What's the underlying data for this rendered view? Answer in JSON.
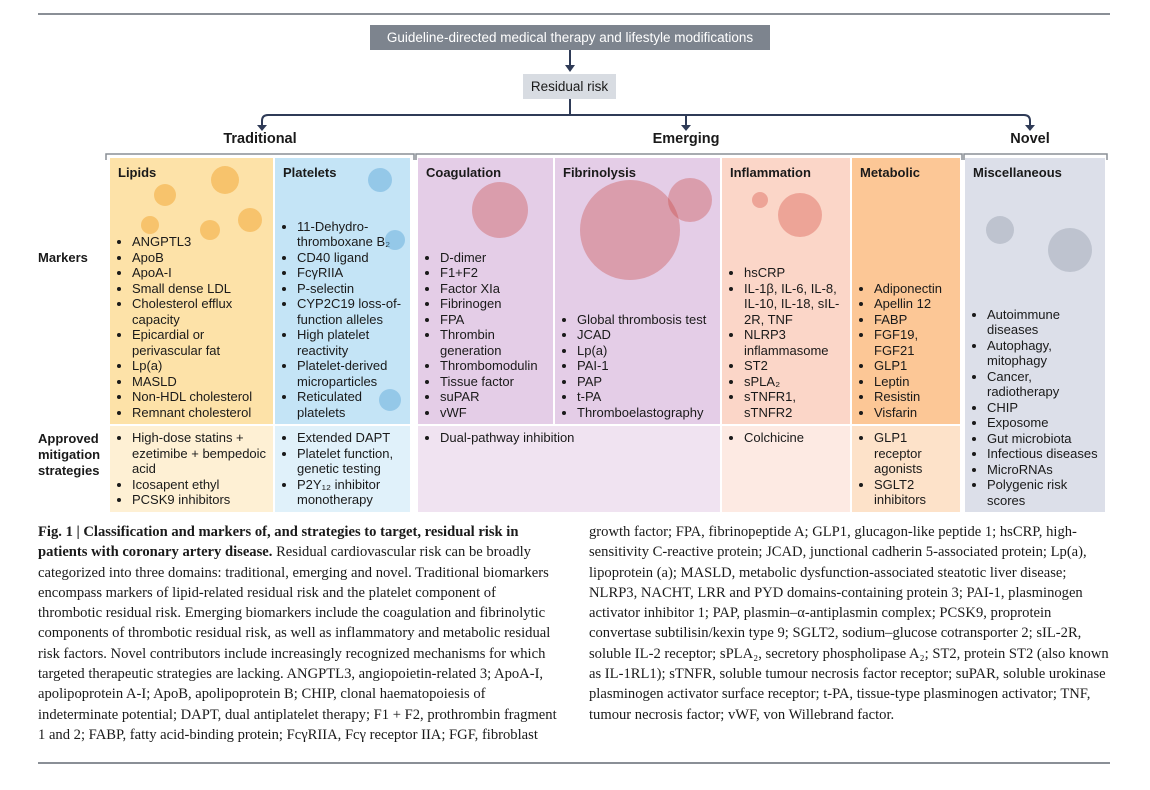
{
  "top_box": "Guideline-directed medical therapy and lifestyle modifications",
  "residual_box": "Residual risk",
  "groups": [
    "Traditional",
    "Emerging",
    "Novel"
  ],
  "markers_row": {
    "label": "Markers",
    "columns": [
      {
        "title": "Lipids",
        "items": [
          "ANGPTL3",
          "ApoB",
          "ApoA-I",
          "Small dense LDL",
          "Cholesterol efflux capacity",
          "Epicardial or perivascular fat",
          "Lp(a)",
          "MASLD",
          "Non-HDL cholesterol",
          "Remnant cholesterol"
        ]
      },
      {
        "title": "Platelets",
        "items": [
          "11-Dehydro-thromboxane B₂",
          "CD40 ligand",
          "FcγRIIA",
          "P-selectin",
          "CYP2C19 loss-of-function alleles",
          "High platelet reactivity",
          "Platelet-derived microparticles",
          "Reticulated platelets"
        ]
      },
      {
        "title": "Coagulation",
        "items": [
          "D-dimer",
          "F1+F2",
          "Factor XIa",
          "Fibrinogen",
          "FPA",
          "Thrombin generation",
          "Thrombomodulin",
          "Tissue factor",
          "suPAR",
          "vWF"
        ]
      },
      {
        "title": "Fibrinolysis",
        "items": [
          "Global thrombosis test",
          "JCAD",
          "Lp(a)",
          "PAI-1",
          "PAP",
          "t-PA",
          "Thromboelastography"
        ]
      },
      {
        "title": "Inflammation",
        "items": [
          "hsCRP",
          "IL-1β, IL-6, IL-8, IL-10, IL-18, sIL-2R, TNF",
          "NLRP3 inflammasome",
          "ST2",
          "sPLA₂",
          "sTNFR1, sTNFR2"
        ]
      },
      {
        "title": "Metabolic",
        "items": [
          "Adiponectin",
          "Apellin 12",
          "FABP",
          "FGF19, FGF21",
          "GLP1",
          "Leptin",
          "Resistin",
          "Visfarin"
        ]
      },
      {
        "title": "Miscellaneous",
        "items": [
          "Autoimmune diseases",
          "Autophagy, mitophagy",
          "Cancer, radiotherapy",
          "CHIP",
          "Exposome",
          "Gut microbiota",
          "Infectious diseases",
          "MicroRNAs",
          "Polygenic risk scores"
        ]
      }
    ]
  },
  "strategies_row": {
    "label": "Approved mitigation strategies",
    "blocks": [
      {
        "items": [
          "High-dose statins + ezetimibe + bempedoic acid",
          "Icosapent ethyl",
          "PCSK9 inhibitors"
        ]
      },
      {
        "items": [
          "Extended DAPT",
          "Platelet function, genetic testing",
          "P2Y₁₂ inhibitor monotherapy"
        ]
      },
      {
        "items": [
          "Dual-pathway inhibition"
        ]
      },
      {
        "items": [
          "Colchicine"
        ]
      },
      {
        "items": [
          "GLP1 receptor agonists",
          "SGLT2 inhibitors"
        ]
      }
    ]
  },
  "caption": {
    "title": "Fig. 1 | Classification and markers of, and strategies to target, residual risk in patients with coronary artery disease.",
    "text": "Residual cardiovascular risk can be broadly categorized into three domains: traditional, emerging and novel. Traditional biomarkers encompass markers of lipid-related residual risk and the platelet component of thrombotic residual risk. Emerging biomarkers include the coagulation and fibrinolytic components of thrombotic residual risk, as well as inflammatory and metabolic residual risk factors. Novel contributors include increasingly recognized mechanisms for which targeted therapeutic strategies are lacking. ANGPTL3, angiopoietin-related 3; ApoA-I, apolipoprotein A-I; ApoB, apolipoprotein B; CHIP, clonal haematopoiesis of indeterminate potential; DAPT, dual antiplatelet therapy; F1 + F2, prothrombin fragment 1 and 2; FABP, fatty acid-binding protein; FcγRIIA, Fcγ receptor IIA; FGF, fibroblast growth factor; FPA, fibrinopeptide A; GLP1, glucagon-like peptide 1; hsCRP, high-sensitivity C-reactive protein; JCAD, junctional cadherin 5-associated protein; Lp(a), lipoprotein (a); MASLD, metabolic dysfunction-associated steatotic liver disease; NLRP3, NACHT, LRR and PYD domains-containing protein 3; PAI-1, plasminogen activator inhibitor 1; PAP, plasmin–α-antiplasmin complex; PCSK9, proprotein convertase subtilisin/kexin type 9; SGLT2, sodium–glucose cotransporter 2; sIL-2R, soluble IL-2 receptor; sPLA₂, secretory phospholipase A₂; ST2, protein ST2 (also known as IL-1RL1); sTNFR, soluble tumour necrosis factor receptor; suPAR, soluble urokinase plasminogen activator surface receptor; t-PA, tissue-type plasminogen activator; TNF, tumour necrosis factor; vWF, von Willebrand factor."
  }
}
